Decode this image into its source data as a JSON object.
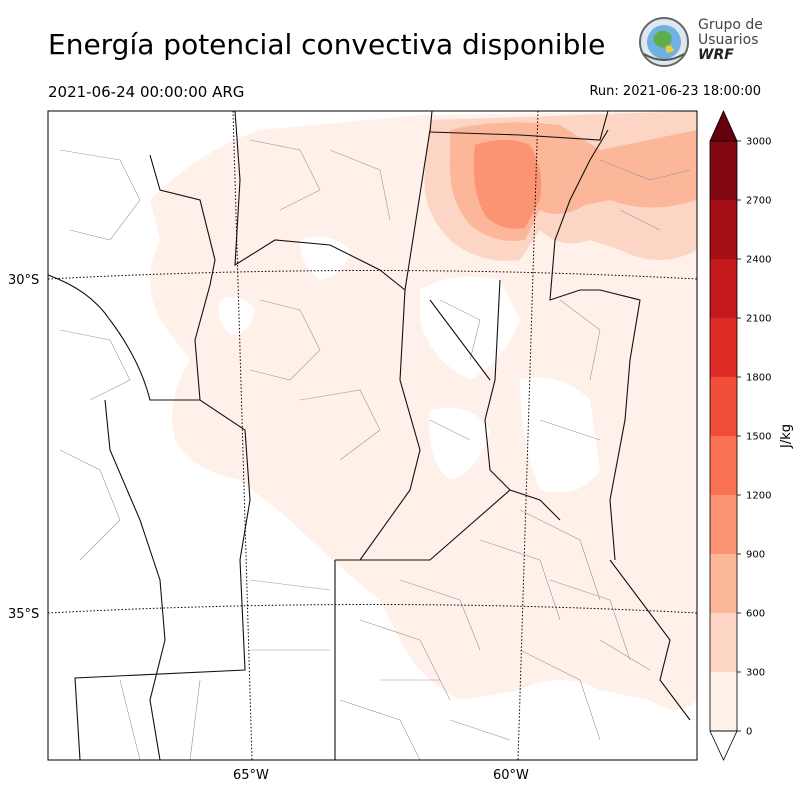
{
  "header": {
    "title": "Energía potencial convectiva disponible",
    "valid_time": "2021-06-24 00:00:00 ARG",
    "run_time": "Run: 2021-06-23 18:00:00"
  },
  "logo": {
    "line1": "Grupo de",
    "line2": "Usuarios",
    "line3": "WRF"
  },
  "map": {
    "lat_labels": [
      "30°S",
      "35°S"
    ],
    "lon_labels": [
      "65°W",
      "60°W"
    ]
  },
  "colorbar": {
    "label": "J/kg",
    "ticks": [
      "0",
      "300",
      "600",
      "900",
      "1200",
      "1500",
      "1800",
      "2100",
      "2400",
      "2700",
      "3000"
    ],
    "colors": [
      "#fff0ea",
      "#fdd5c4",
      "#fcb79a",
      "#fc9474",
      "#f97252",
      "#f24d39",
      "#de2d26",
      "#c41a1e",
      "#a50f15",
      "#820711",
      "#67000d"
    ]
  }
}
